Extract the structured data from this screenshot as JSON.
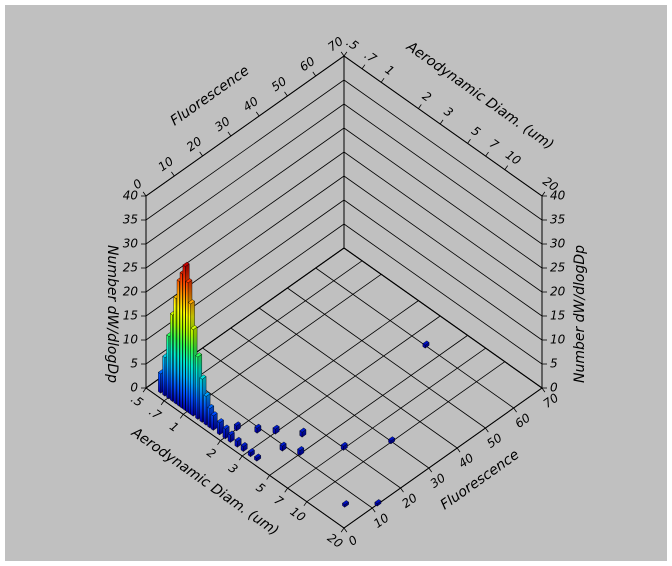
{
  "chart_data": {
    "type": "bar3d",
    "x_label": "Aerodynamic Diam. (um)",
    "y_label": "Fluorescence",
    "z_label": "Number dW/dlogDp",
    "xscale": "log",
    "xlim": [
      0.5,
      20
    ],
    "xticks": [
      {
        "value": 0.5,
        "label": ".5"
      },
      {
        "value": 0.7,
        "label": ".7"
      },
      1,
      2,
      3,
      5,
      7,
      10,
      20
    ],
    "ylim": [
      0,
      70
    ],
    "yticks": [
      0,
      10,
      20,
      30,
      40,
      50,
      60,
      70
    ],
    "zlim": [
      0,
      40
    ],
    "zticks": [
      0,
      5,
      10,
      15,
      20,
      25,
      30,
      35,
      40
    ],
    "grid": true,
    "colormap": [
      "#0000b0",
      "#0050ff",
      "#00b0ff",
      "#00f0d0",
      "#30ff50",
      "#b0ff00",
      "#ffff00",
      "#ffa000",
      "#ff4000",
      "#c00000"
    ],
    "x": [
      0.6,
      0.65,
      0.7,
      0.75,
      0.8,
      0.85,
      0.9,
      0.95,
      1.0,
      1.05,
      1.1,
      1.2,
      1.3,
      1.4,
      1.5,
      1.6,
      1.8,
      2.0,
      2.2,
      2.5,
      2.8,
      3.2,
      3.6,
      2.0,
      2.5,
      3.0,
      4.0,
      4.0,
      5.0,
      7.0,
      10.0,
      15.0,
      20.0,
      3.9
    ],
    "y": [
      2,
      2,
      2,
      2,
      2,
      2,
      2,
      2,
      2,
      2,
      2,
      2,
      2,
      2,
      2,
      2,
      2,
      2,
      2,
      2,
      2,
      2,
      2,
      6,
      9,
      12,
      9,
      16,
      11,
      20,
      30,
      6,
      12,
      60
    ],
    "values": [
      4,
      8,
      13,
      18,
      22,
      26,
      28,
      30,
      27,
      23,
      18,
      13,
      9,
      6,
      4,
      3,
      2.5,
      2,
      1.5,
      1.2,
      1,
      0.8,
      0.6,
      1,
      1,
      1,
      1,
      1,
      1,
      0.8,
      0.6,
      0.5,
      0.5,
      0.6
    ]
  }
}
